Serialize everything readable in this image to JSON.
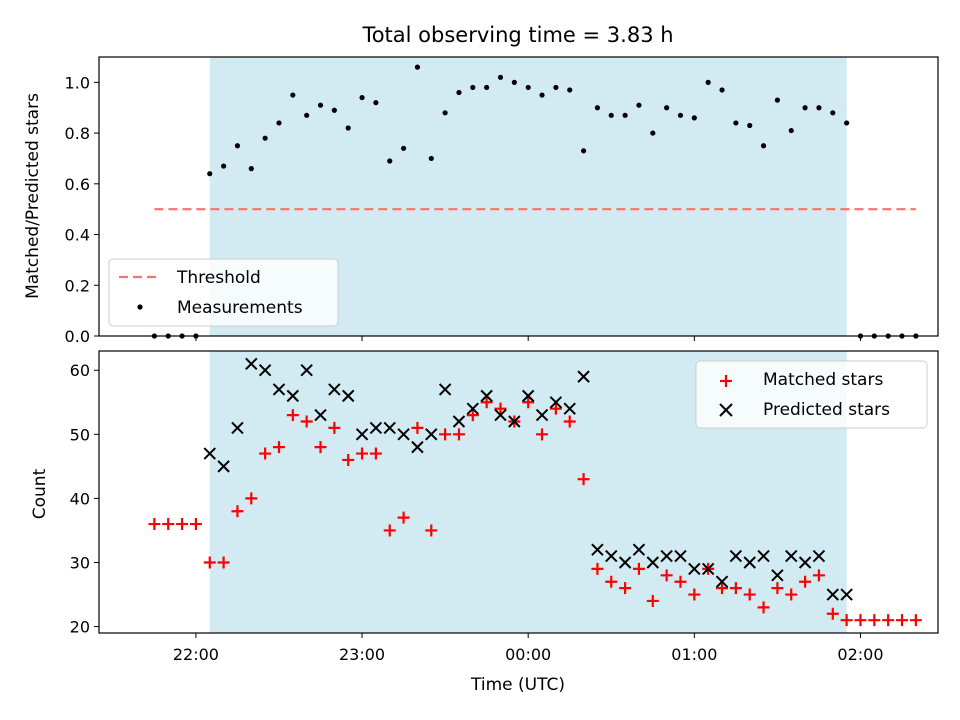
{
  "colors": {
    "observing_span": "#add8e6",
    "threshold": "#ff6f6f",
    "measurements": "#000000",
    "matched": "#ff0000",
    "predicted": "#000000"
  },
  "chart_data": [
    {
      "type": "scatter",
      "title": "Total observing time = 3.83 h",
      "ylabel": "Matched/Predicted stars",
      "xlabel": "",
      "ylim": [
        0,
        1.1
      ],
      "yticks": [
        0.0,
        0.2,
        0.4,
        0.6,
        0.8,
        1.0
      ],
      "ytick_labels": [
        "0.0",
        "0.2",
        "0.4",
        "0.6",
        "0.8",
        "1.0"
      ],
      "observing_span": [
        "22:05",
        "01:55"
      ],
      "threshold": {
        "value": 0.5,
        "x_range": [
          "21:45",
          "02:20"
        ],
        "name": "Threshold"
      },
      "legend": {
        "location": "lower-left",
        "entries": [
          "Threshold",
          "Measurements"
        ]
      },
      "series": [
        {
          "name": "Measurements",
          "marker": "dot",
          "x": [
            "21:45",
            "21:50",
            "21:55",
            "22:00",
            "22:05",
            "22:10",
            "22:15",
            "22:20",
            "22:25",
            "22:30",
            "22:35",
            "22:40",
            "22:45",
            "22:50",
            "22:55",
            "23:00",
            "23:05",
            "23:10",
            "23:15",
            "23:20",
            "23:25",
            "23:30",
            "23:35",
            "23:40",
            "23:45",
            "23:50",
            "23:55",
            "00:00",
            "00:05",
            "00:10",
            "00:15",
            "00:20",
            "00:25",
            "00:30",
            "00:35",
            "00:40",
            "00:45",
            "00:50",
            "00:55",
            "01:00",
            "01:05",
            "01:10",
            "01:15",
            "01:20",
            "01:25",
            "01:30",
            "01:35",
            "01:40",
            "01:45",
            "01:50",
            "01:55",
            "02:00",
            "02:05",
            "02:10",
            "02:15",
            "02:20"
          ],
          "y": [
            0,
            0,
            0,
            0,
            0.64,
            0.67,
            0.75,
            0.66,
            0.78,
            0.84,
            0.95,
            0.87,
            0.91,
            0.89,
            0.82,
            0.94,
            0.92,
            0.69,
            0.74,
            1.06,
            0.7,
            0.88,
            0.96,
            0.98,
            0.98,
            1.02,
            1.0,
            0.98,
            0.95,
            0.98,
            0.97,
            0.73,
            0.9,
            0.87,
            0.87,
            0.91,
            0.8,
            0.9,
            0.87,
            0.86,
            1.0,
            0.97,
            0.84,
            0.83,
            0.75,
            0.93,
            0.81,
            0.9,
            0.9,
            0.88,
            0.84,
            0,
            0,
            0,
            0,
            0
          ]
        }
      ]
    },
    {
      "type": "scatter",
      "title": "",
      "xlabel": "Time (UTC)",
      "ylabel": "Count",
      "ylim": [
        19,
        63
      ],
      "yticks": [
        20,
        30,
        40,
        50,
        60
      ],
      "ytick_labels": [
        "20",
        "30",
        "40",
        "50",
        "60"
      ],
      "xlim": [
        "21:25",
        "02:28"
      ],
      "xticks": [
        "22:00",
        "23:00",
        "00:00",
        "01:00",
        "02:00"
      ],
      "xtick_labels": [
        "22:00",
        "23:00",
        "00:00",
        "01:00",
        "02:00"
      ],
      "observing_span": [
        "22:05",
        "01:55"
      ],
      "legend": {
        "location": "upper-right",
        "entries": [
          "Matched stars",
          "Predicted stars"
        ]
      },
      "series": [
        {
          "name": "Matched stars",
          "marker": "plus",
          "x": [
            "21:45",
            "21:50",
            "21:55",
            "22:00",
            "22:05",
            "22:10",
            "22:15",
            "22:20",
            "22:25",
            "22:30",
            "22:35",
            "22:40",
            "22:45",
            "22:50",
            "22:55",
            "23:00",
            "23:05",
            "23:10",
            "23:15",
            "23:20",
            "23:25",
            "23:30",
            "23:35",
            "23:40",
            "23:45",
            "23:50",
            "23:55",
            "00:00",
            "00:05",
            "00:10",
            "00:15",
            "00:20",
            "00:25",
            "00:30",
            "00:35",
            "00:40",
            "00:45",
            "00:50",
            "00:55",
            "01:00",
            "01:05",
            "01:10",
            "01:15",
            "01:20",
            "01:25",
            "01:30",
            "01:35",
            "01:40",
            "01:45",
            "01:50",
            "01:55",
            "02:00",
            "02:05",
            "02:10",
            "02:15",
            "02:20"
          ],
          "y": [
            36,
            36,
            36,
            36,
            30,
            30,
            38,
            40,
            47,
            48,
            53,
            52,
            48,
            51,
            46,
            47,
            47,
            35,
            37,
            51,
            35,
            50,
            50,
            53,
            55,
            54,
            52,
            55,
            50,
            54,
            52,
            43,
            29,
            27,
            26,
            29,
            24,
            28,
            27,
            25,
            29,
            26,
            26,
            25,
            23,
            26,
            25,
            27,
            28,
            22,
            21,
            21,
            21,
            21,
            21,
            21
          ]
        },
        {
          "name": "Predicted stars",
          "marker": "x",
          "x": [
            "22:05",
            "22:10",
            "22:15",
            "22:20",
            "22:25",
            "22:30",
            "22:35",
            "22:40",
            "22:45",
            "22:50",
            "22:55",
            "23:00",
            "23:05",
            "23:10",
            "23:15",
            "23:20",
            "23:25",
            "23:30",
            "23:35",
            "23:40",
            "23:45",
            "23:50",
            "23:55",
            "00:00",
            "00:05",
            "00:10",
            "00:15",
            "00:20",
            "00:25",
            "00:30",
            "00:35",
            "00:40",
            "00:45",
            "00:50",
            "00:55",
            "01:00",
            "01:05",
            "01:10",
            "01:15",
            "01:20",
            "01:25",
            "01:30",
            "01:35",
            "01:40",
            "01:45",
            "01:50",
            "01:55"
          ],
          "y": [
            47,
            45,
            51,
            61,
            60,
            57,
            56,
            60,
            53,
            57,
            56,
            50,
            51,
            51,
            50,
            48,
            50,
            57,
            52,
            54,
            56,
            53,
            52,
            56,
            53,
            55,
            54,
            59,
            32,
            31,
            30,
            32,
            30,
            31,
            31,
            29,
            29,
            27,
            31,
            30,
            31,
            28,
            31,
            30,
            31,
            25,
            25
          ]
        }
      ]
    }
  ]
}
